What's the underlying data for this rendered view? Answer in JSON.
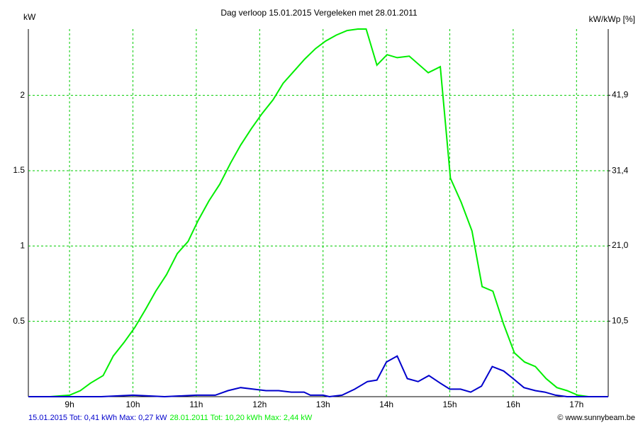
{
  "chart_data": {
    "type": "line",
    "title": "Dag  verloop 15.01.2015   Vergeleken met 28.01.2011",
    "y_label": "kW",
    "y2_label": "kW/kWp [%]",
    "credit": "© www.sunnybeam.be",
    "xlim": [
      8.35,
      17.5
    ],
    "xticks": [
      {
        "value": 9,
        "label": "9h"
      },
      {
        "value": 10,
        "label": "10h"
      },
      {
        "value": 11,
        "label": "11h"
      },
      {
        "value": 12,
        "label": "12h"
      },
      {
        "value": 13,
        "label": "13h"
      },
      {
        "value": 14,
        "label": "14h"
      },
      {
        "value": 15,
        "label": "15h"
      },
      {
        "value": 16,
        "label": "16h"
      },
      {
        "value": 17,
        "label": "17h"
      }
    ],
    "ylim": [
      0,
      2.44
    ],
    "yticks": [
      0.5,
      1,
      1.5,
      2
    ],
    "y2lim": [
      0,
      51.1
    ],
    "y2ticks": [
      {
        "value": 10.5,
        "label": "10,5"
      },
      {
        "value": 21,
        "label": "21,0"
      },
      {
        "value": 31.4,
        "label": "31,4"
      },
      {
        "value": 41.9,
        "label": "41,9"
      }
    ],
    "grid": true,
    "series": [
      {
        "name": "15.01.2015 Tot: 0,41 kWh Max: 0,27 kW",
        "color": "#0000cc",
        "x": [
          8.35,
          9.0,
          9.5,
          10.0,
          10.5,
          11.0,
          11.3,
          11.5,
          11.7,
          11.9,
          12.1,
          12.3,
          12.5,
          12.7,
          12.8,
          13.0,
          13.1,
          13.3,
          13.5,
          13.7,
          13.85,
          14.0,
          14.17,
          14.33,
          14.5,
          14.67,
          14.85,
          15.0,
          15.17,
          15.33,
          15.5,
          15.67,
          15.85,
          16.0,
          16.17,
          16.35,
          16.5,
          16.67,
          16.85,
          17.0,
          17.5
        ],
        "values": [
          0,
          0,
          0,
          0.01,
          0,
          0.01,
          0.01,
          0.04,
          0.06,
          0.05,
          0.04,
          0.04,
          0.03,
          0.03,
          0.01,
          0.01,
          0,
          0.01,
          0.05,
          0.1,
          0.11,
          0.23,
          0.27,
          0.12,
          0.1,
          0.14,
          0.09,
          0.05,
          0.05,
          0.03,
          0.07,
          0.2,
          0.17,
          0.12,
          0.06,
          0.04,
          0.03,
          0.01,
          0,
          0,
          0
        ]
      },
      {
        "name": "28.01.2011 Tot: 10,20 kWh Max: 2,44 kW",
        "color": "#00ee00",
        "x": [
          8.35,
          8.69,
          9.0,
          9.17,
          9.33,
          9.53,
          9.69,
          9.86,
          10.03,
          10.2,
          10.36,
          10.53,
          10.7,
          10.87,
          11.03,
          11.2,
          11.37,
          11.54,
          11.7,
          11.87,
          12.04,
          12.21,
          12.37,
          12.54,
          12.71,
          12.88,
          13.04,
          13.21,
          13.38,
          13.55,
          13.68,
          13.85,
          14.01,
          14.17,
          14.36,
          14.66,
          14.85,
          15.01,
          15.18,
          15.35,
          15.51,
          15.68,
          15.85,
          16.02,
          16.18,
          16.35,
          16.52,
          16.69,
          16.85,
          17.02,
          17.19,
          17.49
        ],
        "values": [
          0,
          0,
          0.01,
          0.04,
          0.09,
          0.14,
          0.27,
          0.36,
          0.46,
          0.58,
          0.7,
          0.81,
          0.95,
          1.03,
          1.17,
          1.3,
          1.41,
          1.55,
          1.67,
          1.78,
          1.88,
          1.97,
          2.08,
          2.16,
          2.24,
          2.31,
          2.36,
          2.4,
          2.43,
          2.44,
          2.44,
          2.2,
          2.27,
          2.25,
          2.26,
          2.15,
          2.19,
          1.45,
          1.29,
          1.1,
          0.73,
          0.7,
          0.48,
          0.29,
          0.23,
          0.2,
          0.12,
          0.06,
          0.04,
          0.01,
          0,
          0
        ]
      }
    ]
  }
}
